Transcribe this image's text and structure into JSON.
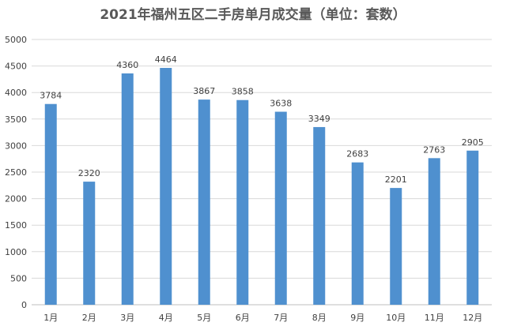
{
  "chart_data": {
    "type": "bar",
    "title": "2021年福州五区二手房单月成交量（单位：套数）",
    "categories": [
      "1月",
      "2月",
      "3月",
      "4月",
      "5月",
      "6月",
      "7月",
      "8月",
      "9月",
      "10月",
      "11月",
      "12月"
    ],
    "values": [
      3784,
      2320,
      4360,
      4464,
      3867,
      3858,
      3638,
      3349,
      2683,
      2201,
      2763,
      2905
    ],
    "ylim": [
      0,
      5000
    ],
    "yticks": [
      0,
      500,
      1000,
      1500,
      2000,
      2500,
      3000,
      3500,
      4000,
      4500,
      5000
    ],
    "grid": true,
    "legend": "none",
    "colors": {
      "bar": "#4f90cf",
      "grid": "#d9d9d9"
    }
  }
}
